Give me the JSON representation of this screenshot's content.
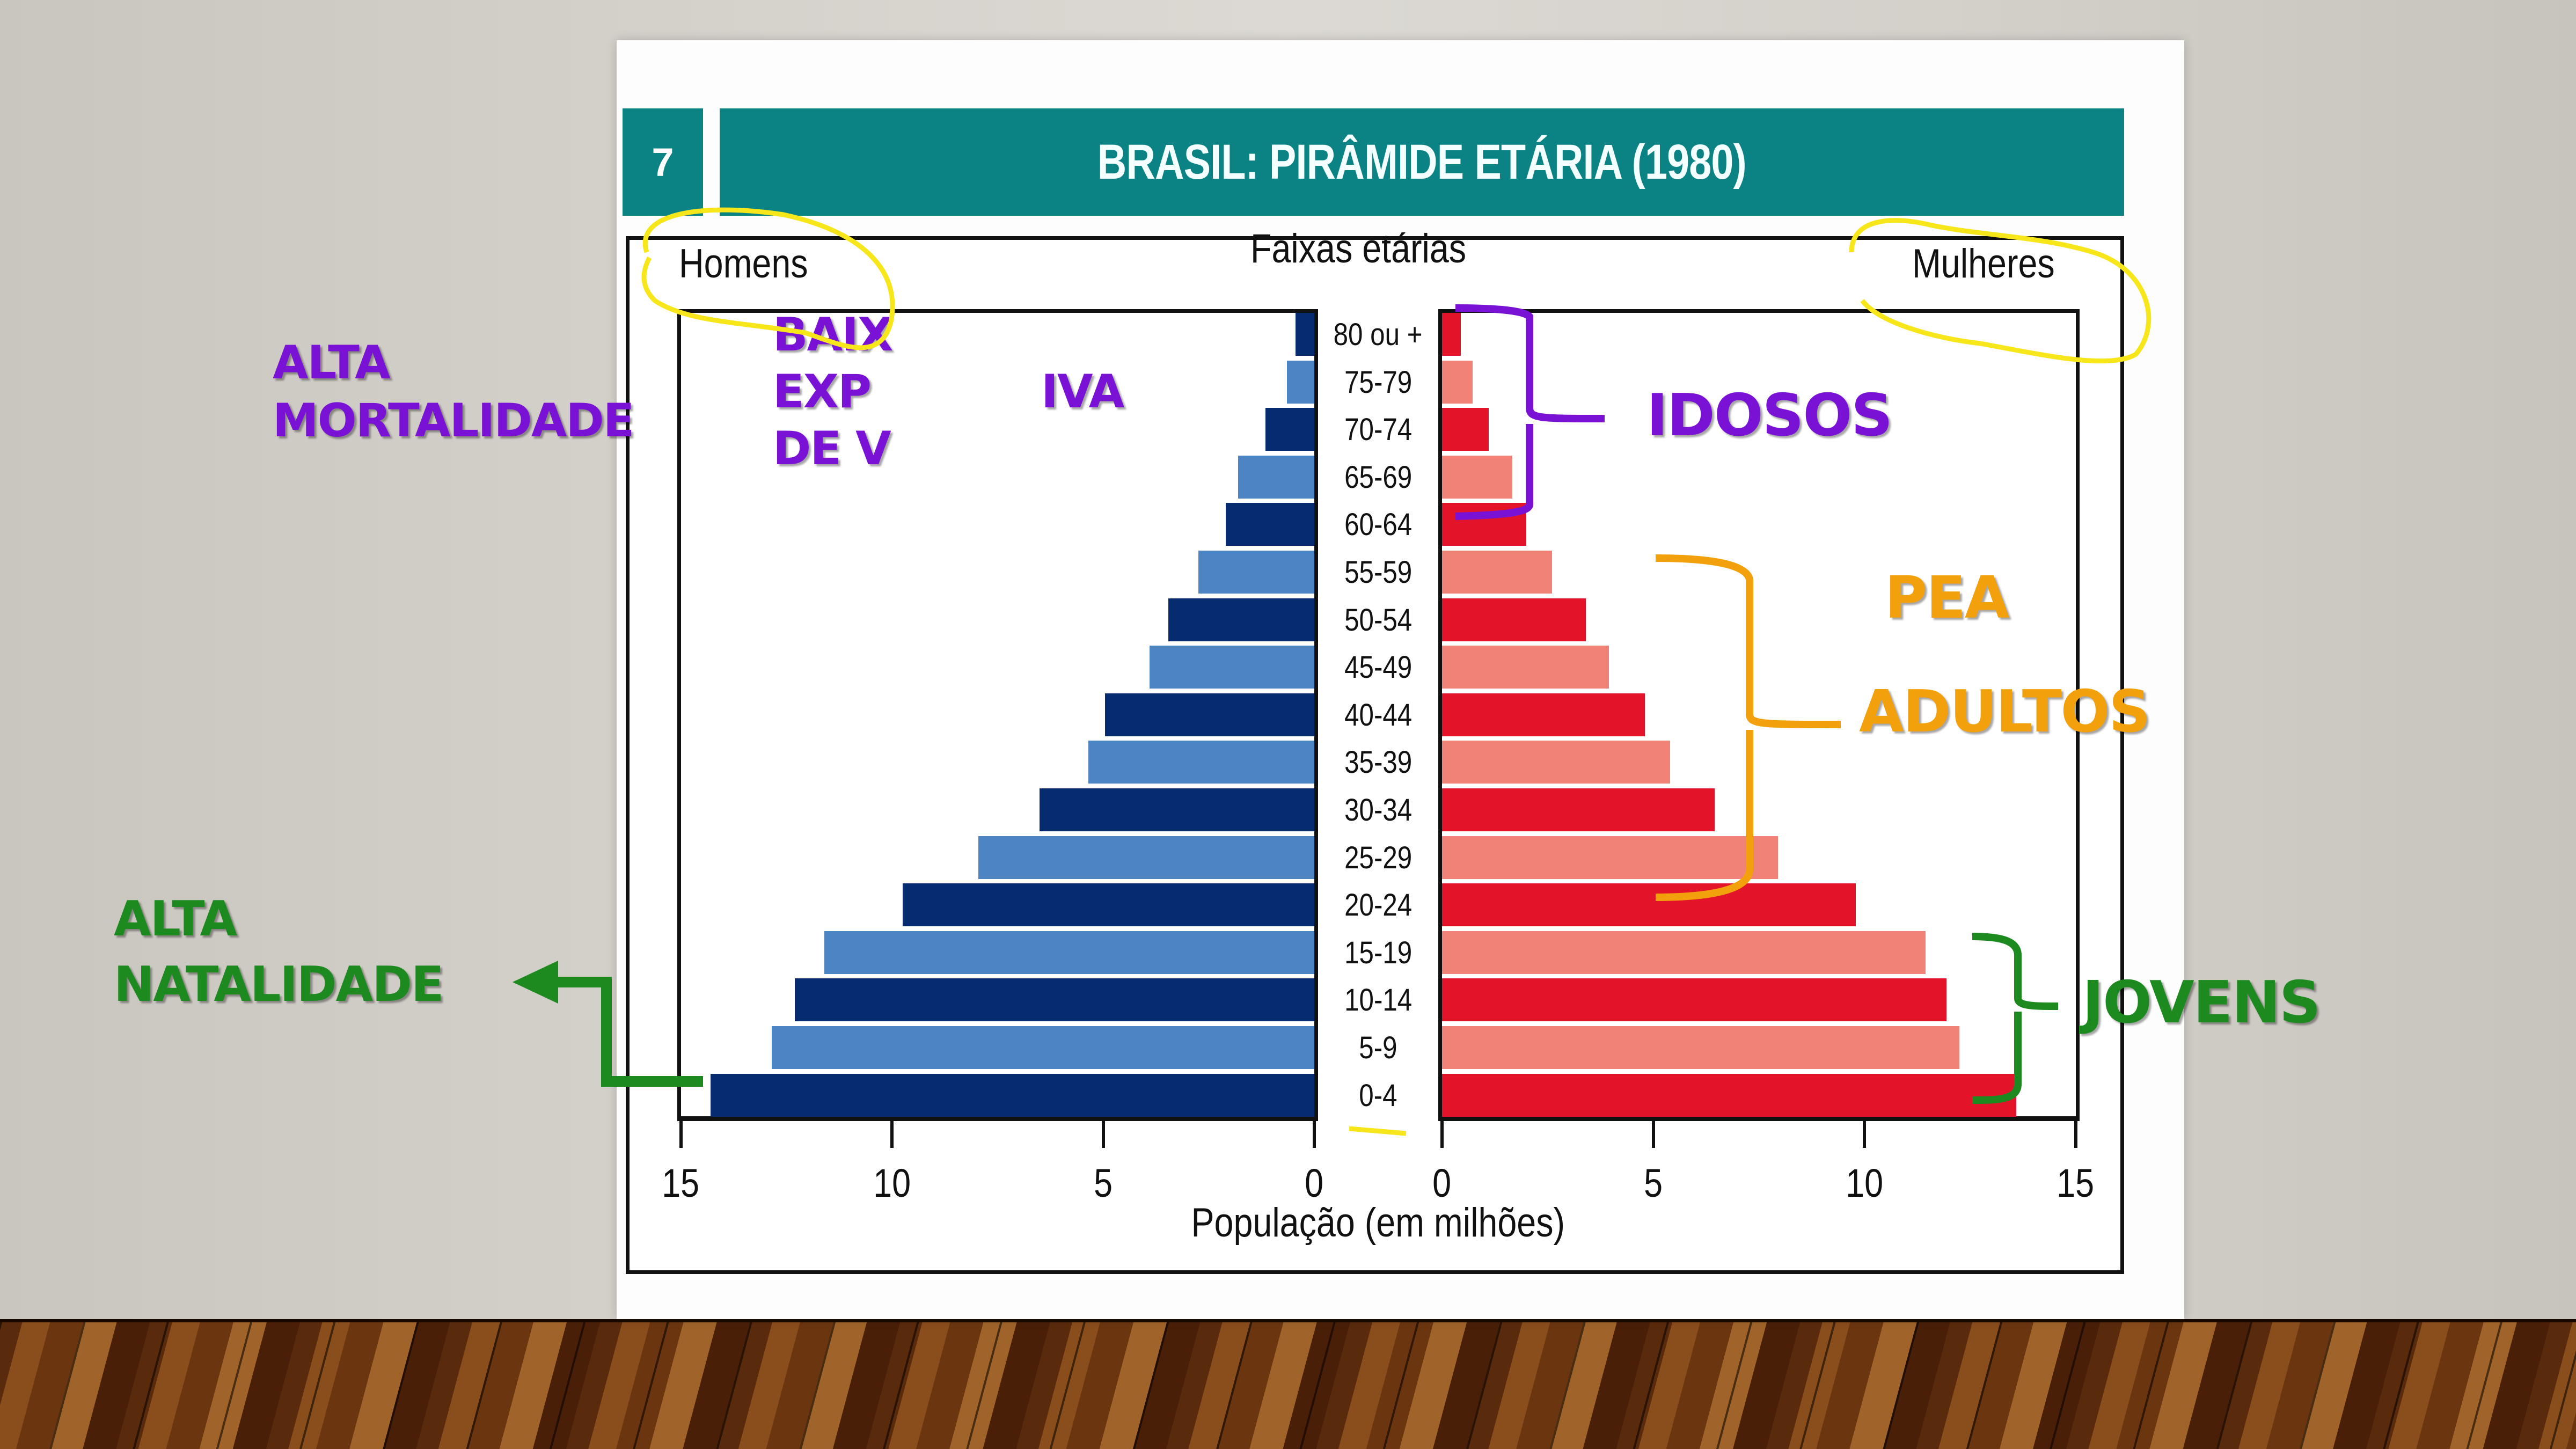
{
  "slide": {
    "number": "7",
    "title": "BRASIL: PIRÂMIDE ETÁRIA (1980)"
  },
  "chart_data": {
    "type": "bar",
    "subtype": "population-pyramid",
    "title": "BRASIL: PIRÂMIDE ETÁRIA (1980)",
    "categories_label": "Faixas etárias",
    "categories": [
      "80 ou +",
      "75-79",
      "70-74",
      "65-69",
      "60-64",
      "55-59",
      "50-54",
      "45-49",
      "40-44",
      "35-39",
      "30-34",
      "25-29",
      "20-24",
      "15-19",
      "10-14",
      "5-9",
      "0-4"
    ],
    "series": [
      {
        "name": "Homens",
        "side": "left",
        "colors": [
          "#062b6e",
          "#4d84c4"
        ],
        "values": [
          0.45,
          0.65,
          1.15,
          1.8,
          2.1,
          2.75,
          3.45,
          3.9,
          4.95,
          5.35,
          6.5,
          7.95,
          9.75,
          11.6,
          12.3,
          12.85,
          14.3
        ]
      },
      {
        "name": "Mulheres",
        "side": "right",
        "colors": [
          "#e3142a",
          "#f08278"
        ],
        "values": [
          0.45,
          0.72,
          1.1,
          1.67,
          2.0,
          2.6,
          3.4,
          3.95,
          4.8,
          5.4,
          6.45,
          7.95,
          9.8,
          11.45,
          11.95,
          12.25,
          13.6
        ]
      }
    ],
    "xlabel": "População (em milhões)",
    "xticks": [
      15,
      10,
      5,
      0
    ],
    "xlim": [
      0,
      15
    ],
    "grid": false,
    "legend": {
      "left": "Homens",
      "right": "Mulheres",
      "position": "top"
    }
  },
  "chart_labels": {
    "left_header": "Homens",
    "center_header": "Faixas etárias",
    "right_header": "Mulheres",
    "x_axis_label": "População (em milhões)",
    "left_ticks": [
      "15",
      "10",
      "5",
      "0"
    ],
    "right_ticks": [
      "0",
      "5",
      "10",
      "15"
    ]
  },
  "annotations": {
    "alta_mortalidade": [
      "ALTA",
      "MORTALIDADE"
    ],
    "baixa_expectativa_fragments": {
      "line1": "BAIX",
      "line2a": "EXP",
      "line2b": "IVA",
      "line3": "DE V"
    },
    "idosos": "IDOSOS",
    "pea": "PEA",
    "adultos": "ADULTOS",
    "jovens": "JOVENS",
    "alta_natalidade": [
      "ALTA",
      "NATALIDADE"
    ]
  },
  "colors": {
    "teal": "#0b8384",
    "purple": "#7a12d6",
    "orange": "#f2a10c",
    "green": "#1c8a1e",
    "yellow_highlight": "#f6e61a"
  }
}
